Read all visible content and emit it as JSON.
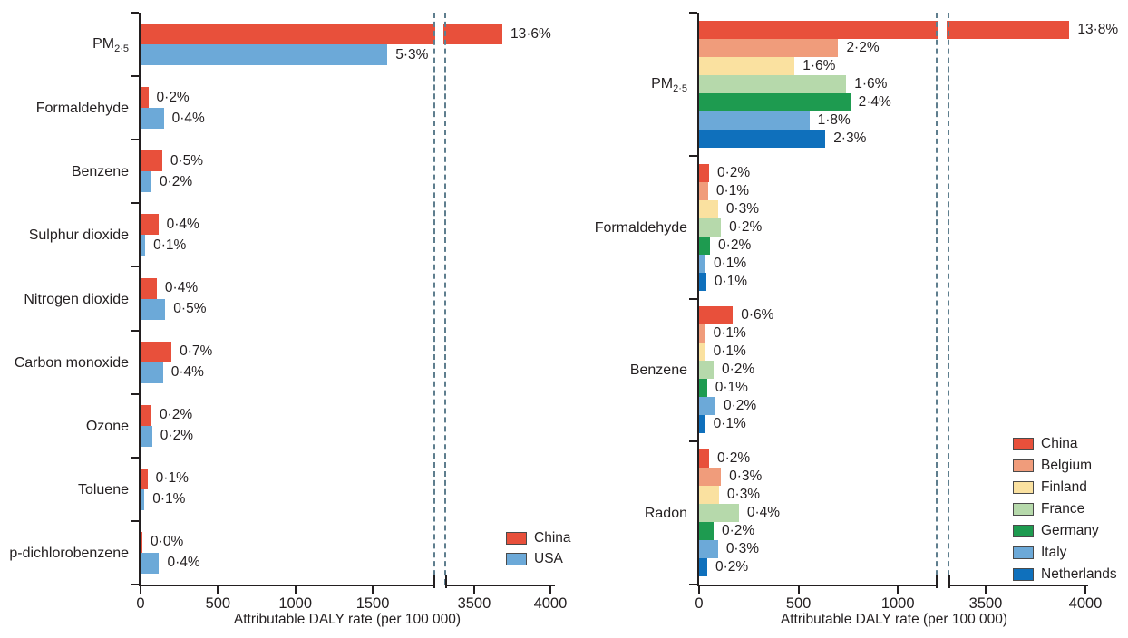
{
  "figure_title": "",
  "xaxis_title": "Attributable DALY rate (per 100 000)",
  "colors": {
    "china": "#e8503b",
    "usa": "#6ca9d8",
    "belgium": "#f09c7b",
    "finland": "#fae1a0",
    "france": "#b6d9ab",
    "germany": "#1e9b50",
    "italy": "#6ca9d8",
    "netherlands": "#0f70bc",
    "axis": "#231f20",
    "break_dash": "#5e7e8e"
  },
  "chart_data": [
    {
      "type": "bar",
      "orientation": "horizontal",
      "panel": "left",
      "xlabel": "Attributable DALY rate (per 100 000)",
      "xlim": [
        0,
        4000
      ],
      "axis": {
        "ticks_before_break": [
          0,
          500,
          1000,
          1500
        ],
        "ticks_after_break": [
          3500,
          4000
        ],
        "break_between": [
          1900,
          3300
        ]
      },
      "categories": [
        "PM2·5",
        "Formaldehyde",
        "Benzene",
        "Sulphur dioxide",
        "Nitrogen dioxide",
        "Carbon monoxide",
        "Ozone",
        "Toluene",
        "p-dichlorobenzene"
      ],
      "series": [
        {
          "name": "China",
          "color": "#e8503b",
          "values": [
            3685,
            50,
            140,
            115,
            105,
            200,
            70,
            45,
            12
          ],
          "labels": [
            "13·6%",
            "0·2%",
            "0·5%",
            "0·4%",
            "0·4%",
            "0·7%",
            "0·2%",
            "0·1%",
            "0·0%"
          ]
        },
        {
          "name": "USA",
          "color": "#6ca9d8",
          "values": [
            1595,
            150,
            70,
            30,
            160,
            145,
            75,
            25,
            120
          ],
          "labels": [
            "5·3%",
            "0·4%",
            "0·2%",
            "0·1%",
            "0·5%",
            "0·4%",
            "0·2%",
            "0·1%",
            "0·4%"
          ]
        }
      ],
      "legend": {
        "position": "inside-bottom-right",
        "entries": [
          {
            "label": "China",
            "color": "#e8503b"
          },
          {
            "label": "USA",
            "color": "#6ca9d8"
          }
        ]
      }
    },
    {
      "type": "bar",
      "orientation": "horizontal",
      "panel": "right",
      "xlabel": "Attributable DALY rate (per 100 000)",
      "xlim": [
        0,
        4000
      ],
      "axis": {
        "ticks_before_break": [
          0,
          500,
          1000
        ],
        "ticks_after_break": [
          3500,
          4000
        ],
        "break_between": [
          1200,
          3300
        ]
      },
      "categories": [
        "PM2·5",
        "Formaldehyde",
        "Benzene",
        "Radon"
      ],
      "series": [
        {
          "name": "China",
          "color": "#e8503b",
          "values": [
            3920,
            50,
            170,
            50
          ],
          "labels": [
            "13·8%",
            "0·2%",
            "0·6%",
            "0·2%"
          ]
        },
        {
          "name": "Belgium",
          "color": "#f09c7b",
          "values": [
            700,
            45,
            30,
            110
          ],
          "labels": [
            "2·2%",
            "0·1%",
            "0·1%",
            "0·3%"
          ]
        },
        {
          "name": "Finland",
          "color": "#fae1a0",
          "values": [
            480,
            95,
            30,
            100
          ],
          "labels": [
            "1·6%",
            "0·3%",
            "0·1%",
            "0·3%"
          ]
        },
        {
          "name": "France",
          "color": "#b6d9ab",
          "values": [
            740,
            110,
            73,
            200
          ],
          "labels": [
            "1·6%",
            "0·2%",
            "0·2%",
            "0·4%"
          ]
        },
        {
          "name": "Germany",
          "color": "#1e9b50",
          "values": [
            760,
            55,
            40,
            73
          ],
          "labels": [
            "2·4%",
            "0·2%",
            "0·1%",
            "0·2%"
          ]
        },
        {
          "name": "Italy",
          "color": "#6ca9d8",
          "values": [
            555,
            32,
            82,
            95
          ],
          "labels": [
            "1·8%",
            "0·1%",
            "0·2%",
            "0·3%"
          ]
        },
        {
          "name": "Netherlands",
          "color": "#0f70bc",
          "values": [
            635,
            36,
            30,
            41
          ],
          "labels": [
            "2·3%",
            "0·1%",
            "0·1%",
            "0·2%"
          ]
        }
      ],
      "legend": {
        "position": "inside-right-middle",
        "entries": [
          {
            "label": "China",
            "color": "#e8503b"
          },
          {
            "label": "Belgium",
            "color": "#f09c7b"
          },
          {
            "label": "Finland",
            "color": "#fae1a0"
          },
          {
            "label": "France",
            "color": "#b6d9ab"
          },
          {
            "label": "Germany",
            "color": "#1e9b50"
          },
          {
            "label": "Italy",
            "color": "#6ca9d8"
          },
          {
            "label": "Netherlands",
            "color": "#0f70bc"
          }
        ]
      }
    }
  ]
}
